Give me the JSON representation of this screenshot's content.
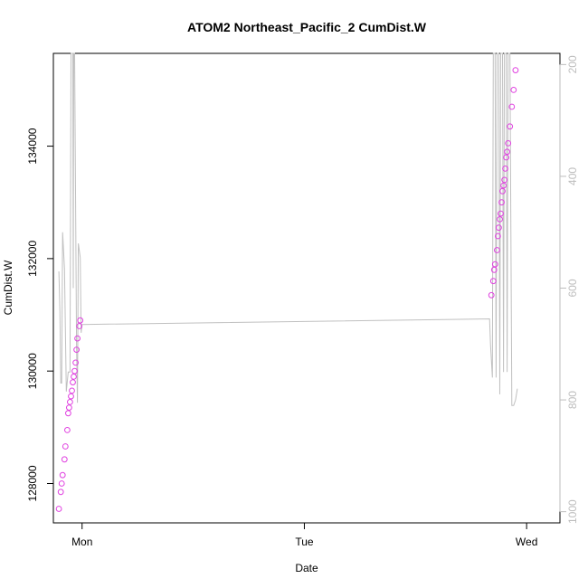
{
  "chart_data": {
    "type": "scatter",
    "title": "ATOM2 Northeast_Pacific_2 CumDist.W",
    "xlabel": "Date",
    "ylabel": "CumDist.W",
    "x_ticks": [
      "Mon",
      "Tue",
      "Wed"
    ],
    "y_ticks": [
      "128000",
      "130000",
      "132000",
      "134000"
    ],
    "y_right_ticks": [
      "200",
      "400",
      "600",
      "800",
      "1000"
    ],
    "y_lim": [
      127300,
      135650
    ],
    "y_right_lim": [
      1020,
      180
    ],
    "x_lim_hours": [
      -3.1,
      51.6
    ],
    "series": [
      {
        "role": "points",
        "color": "#e040e0",
        "marker": "open-circle",
        "points": [
          [
            -2.5,
            127550
          ],
          [
            -2.3,
            127850
          ],
          [
            -2.2,
            128000
          ],
          [
            -2.1,
            128150
          ],
          [
            -1.9,
            128430
          ],
          [
            -1.8,
            128660
          ],
          [
            -1.6,
            128950
          ],
          [
            -1.5,
            129250
          ],
          [
            -1.4,
            129350
          ],
          [
            -1.3,
            129450
          ],
          [
            -1.2,
            129550
          ],
          [
            -1.1,
            129650
          ],
          [
            -1.0,
            129800
          ],
          [
            -0.9,
            129900
          ],
          [
            -0.8,
            130000
          ],
          [
            -0.7,
            130150
          ],
          [
            -0.6,
            130380
          ],
          [
            -0.5,
            130580
          ],
          [
            -0.3,
            130800
          ],
          [
            -0.2,
            130900
          ],
          [
            44.2,
            131350
          ],
          [
            44.4,
            131600
          ],
          [
            44.5,
            131800
          ],
          [
            44.6,
            131900
          ],
          [
            44.8,
            132150
          ],
          [
            44.9,
            132400
          ],
          [
            45.0,
            132550
          ],
          [
            45.1,
            132700
          ],
          [
            45.2,
            132800
          ],
          [
            45.3,
            133000
          ],
          [
            45.4,
            133200
          ],
          [
            45.5,
            133300
          ],
          [
            45.6,
            133400
          ],
          [
            45.7,
            133600
          ],
          [
            45.8,
            133800
          ],
          [
            45.9,
            133900
          ],
          [
            46.0,
            134050
          ],
          [
            46.2,
            134350
          ],
          [
            46.4,
            134700
          ],
          [
            46.6,
            135000
          ],
          [
            46.8,
            135350
          ]
        ]
      },
      {
        "role": "secondary-line",
        "axis": "right",
        "color": "#c0c0c0",
        "points": [
          [
            -2.5,
            570
          ],
          [
            -2.4,
            640
          ],
          [
            -2.3,
            770
          ],
          [
            -2.2,
            770
          ],
          [
            -2.1,
            500
          ],
          [
            -1.9,
            565
          ],
          [
            -1.7,
            785
          ],
          [
            -1.5,
            750
          ],
          [
            -1.3,
            750
          ],
          [
            -1.2,
            180
          ],
          [
            -1.0,
            180
          ],
          [
            -0.95,
            600
          ],
          [
            -0.9,
            180
          ],
          [
            -0.8,
            180
          ],
          [
            -0.6,
            700
          ],
          [
            -0.5,
            805
          ],
          [
            -0.4,
            520
          ],
          [
            -0.2,
            545
          ],
          [
            -0.1,
            680
          ],
          [
            0.0,
            665
          ],
          [
            44.0,
            655
          ],
          [
            44.1,
            700
          ],
          [
            44.3,
            760
          ],
          [
            44.4,
            180
          ],
          [
            44.6,
            180
          ],
          [
            44.7,
            760
          ],
          [
            44.8,
            180
          ],
          [
            45.0,
            180
          ],
          [
            45.1,
            790
          ],
          [
            45.2,
            180
          ],
          [
            45.4,
            180
          ],
          [
            45.5,
            750
          ],
          [
            45.6,
            180
          ],
          [
            45.8,
            180
          ],
          [
            45.9,
            750
          ],
          [
            46.0,
            180
          ],
          [
            46.2,
            180
          ],
          [
            46.4,
            810
          ],
          [
            46.6,
            810
          ],
          [
            46.8,
            800
          ],
          [
            47.0,
            780
          ]
        ]
      }
    ]
  }
}
